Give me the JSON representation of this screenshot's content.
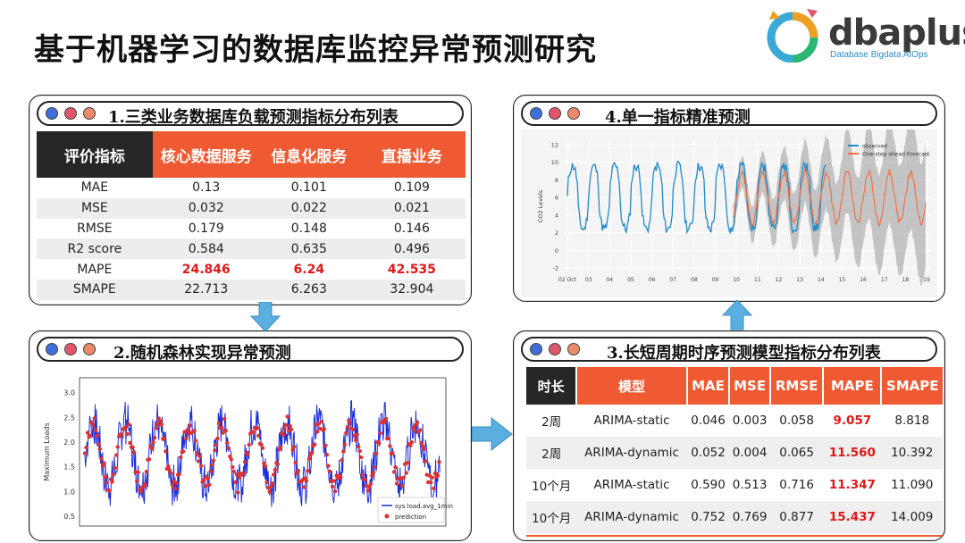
{
  "page_title": "基于机器学习的数据库监控异常预测研究",
  "logo": {
    "text": "dbaplus",
    "subtitle": "Database  Bigdata  AIOps",
    "color": "#2a8cc8"
  },
  "panel1": {
    "title": "1.三类业务数据库负载预测指标分布列表",
    "headers": [
      "评价指标",
      "核心数据服务",
      "信息化服务",
      "直播业务"
    ],
    "rows": [
      [
        "MAE",
        "0.13",
        "0.101",
        "0.109"
      ],
      [
        "MSE",
        "0.032",
        "0.022",
        "0.021"
      ],
      [
        "RMSE",
        "0.179",
        "0.148",
        "0.146"
      ],
      [
        "R2 score",
        "0.584",
        "0.635",
        "0.496"
      ],
      [
        "MAPE",
        "24.846",
        "6.24",
        "42.535"
      ],
      [
        "SMAPE",
        "22.713",
        "6.263",
        "32.904"
      ]
    ]
  },
  "panel2": {
    "title": "2.随机森林实现异常预测",
    "ylabel": "Maximum Loads",
    "yticks": [
      "0.5",
      "1.0",
      "1.5",
      "2.0",
      "2.5",
      "3.0"
    ],
    "legend": [
      "sys.load.avg_1min",
      "prediction"
    ]
  },
  "panel3": {
    "title": "3.长短周期时序预测模型指标分布列表",
    "headers": [
      "时长",
      "模型",
      "MAE",
      "MSE",
      "RMSE",
      "MAPE",
      "SMAPE"
    ],
    "rows": [
      [
        "2周",
        "ARIMA-static",
        "0.046",
        "0.003",
        "0.058",
        "9.057",
        "8.818"
      ],
      [
        "2周",
        "ARIMA-dynamic",
        "0.052",
        "0.004",
        "0.065",
        "11.560",
        "10.392"
      ],
      [
        "10个月",
        "ARIMA-static",
        "0.590",
        "0.513",
        "0.716",
        "11.347",
        "11.090"
      ],
      [
        "10个月",
        "ARIMA-dynamic",
        "0.752",
        "0.769",
        "0.877",
        "15.437",
        "14.009"
      ]
    ]
  },
  "panel4": {
    "title": "4.单一指标精准预测",
    "ylabel": "CO2 Levels",
    "yticks": [
      "-2",
      "0",
      "2",
      "4",
      "6",
      "8",
      "10",
      "12"
    ],
    "xticks": [
      "02\nOct",
      "03",
      "04",
      "05",
      "06",
      "07",
      "08",
      "09",
      "10",
      "11",
      "12",
      "13",
      "14",
      "15",
      "16",
      "17",
      "18",
      "19"
    ],
    "legend": [
      "observed",
      "One-step ahead Forecast"
    ]
  },
  "colors": {
    "orange": "#f05a32",
    "dark": "#262626",
    "blue": "#1f8ac8",
    "arrow": "#5aaee0"
  }
}
